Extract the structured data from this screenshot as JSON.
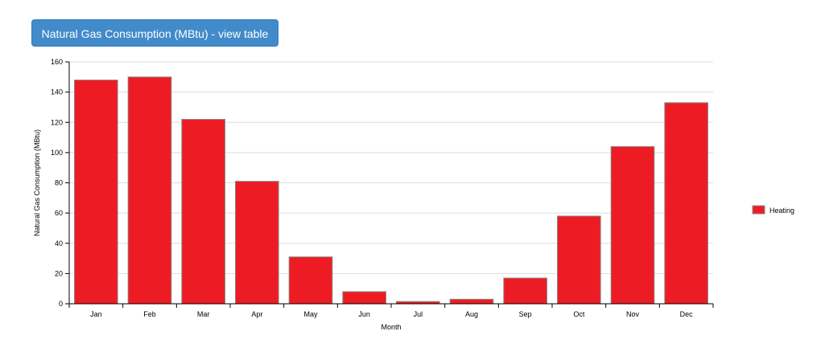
{
  "header": {
    "view_table_button": "Natural Gas Consumption (MBtu) - view table"
  },
  "colors": {
    "bar_fill": "#ed1c24",
    "bar_stroke": "#8a8a8a",
    "grid": "#dddddd",
    "axis": "#000000",
    "button": "#428bca"
  },
  "chart_data": {
    "type": "bar",
    "title": "",
    "xlabel": "Month",
    "ylabel": "Natural Gas Consumption (MBtu)",
    "categories": [
      "Jan",
      "Feb",
      "Mar",
      "Apr",
      "May",
      "Jun",
      "Jul",
      "Aug",
      "Sep",
      "Oct",
      "Nov",
      "Dec"
    ],
    "series": [
      {
        "name": "Heating",
        "values": [
          148,
          150,
          122,
          81,
          31,
          8,
          1.5,
          3,
          17,
          58,
          104,
          133
        ]
      }
    ],
    "ylim": [
      0,
      160
    ],
    "yticks": [
      0,
      20,
      40,
      60,
      80,
      100,
      120,
      140,
      160
    ],
    "grid": true,
    "legend_position": "right"
  }
}
